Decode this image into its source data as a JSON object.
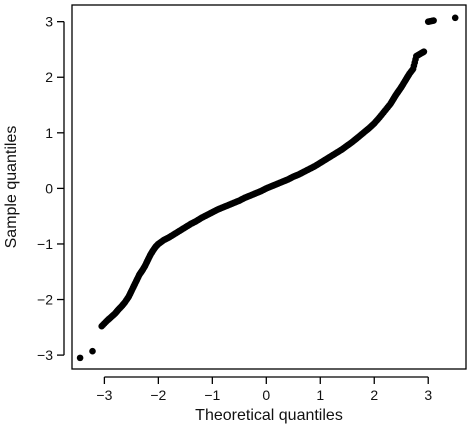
{
  "chart_data": {
    "type": "scatter",
    "xlabel": "Theoretical quantiles",
    "ylabel": "Sample quantiles",
    "xlim": [
      -3.6,
      3.7
    ],
    "ylim": [
      -3.25,
      3.3
    ],
    "x_ticks": [
      {
        "value": -3,
        "label": "−3"
      },
      {
        "value": -2,
        "label": "−2"
      },
      {
        "value": -1,
        "label": "−1"
      },
      {
        "value": 0,
        "label": "0"
      },
      {
        "value": 1,
        "label": "1"
      },
      {
        "value": 2,
        "label": "2"
      },
      {
        "value": 3,
        "label": "3"
      }
    ],
    "y_ticks": [
      {
        "value": -3,
        "label": "−3"
      },
      {
        "value": -2,
        "label": "−2"
      },
      {
        "value": -1,
        "label": "−1"
      },
      {
        "value": 0,
        "label": "0"
      },
      {
        "value": 1,
        "label": "1"
      },
      {
        "value": 2,
        "label": "2"
      },
      {
        "value": 3,
        "label": "3"
      }
    ],
    "grid": false,
    "marker_color": "#000000",
    "series": [
      {
        "points": [
          [
            -3.45,
            -3.05
          ],
          [
            -3.22,
            -2.93
          ],
          [
            -3.05,
            -2.48
          ],
          [
            -2.95,
            -2.38
          ],
          [
            -2.88,
            -2.32
          ],
          [
            -2.8,
            -2.25
          ],
          [
            -2.74,
            -2.18
          ],
          [
            -2.68,
            -2.12
          ],
          [
            -2.62,
            -2.05
          ],
          [
            -2.55,
            -1.95
          ],
          [
            -2.5,
            -1.85
          ],
          [
            -2.45,
            -1.75
          ],
          [
            -2.4,
            -1.65
          ],
          [
            -2.35,
            -1.55
          ],
          [
            -2.3,
            -1.48
          ],
          [
            -2.25,
            -1.4
          ],
          [
            -2.2,
            -1.3
          ],
          [
            -2.15,
            -1.2
          ],
          [
            -2.1,
            -1.12
          ],
          [
            -2.05,
            -1.05
          ],
          [
            -2.0,
            -1.0
          ],
          [
            -1.9,
            -0.93
          ],
          [
            -1.8,
            -0.88
          ],
          [
            -1.7,
            -0.82
          ],
          [
            -1.6,
            -0.76
          ],
          [
            -1.5,
            -0.7
          ],
          [
            -1.4,
            -0.64
          ],
          [
            -1.3,
            -0.59
          ],
          [
            -1.2,
            -0.53
          ],
          [
            -1.1,
            -0.48
          ],
          [
            -1.0,
            -0.43
          ],
          [
            -0.9,
            -0.38
          ],
          [
            -0.8,
            -0.34
          ],
          [
            -0.7,
            -0.3
          ],
          [
            -0.6,
            -0.26
          ],
          [
            -0.5,
            -0.22
          ],
          [
            -0.4,
            -0.17
          ],
          [
            -0.3,
            -0.13
          ],
          [
            -0.2,
            -0.09
          ],
          [
            -0.1,
            -0.05
          ],
          [
            0.0,
            0.0
          ],
          [
            0.1,
            0.04
          ],
          [
            0.2,
            0.08
          ],
          [
            0.3,
            0.12
          ],
          [
            0.4,
            0.16
          ],
          [
            0.5,
            0.21
          ],
          [
            0.6,
            0.25
          ],
          [
            0.7,
            0.3
          ],
          [
            0.8,
            0.35
          ],
          [
            0.9,
            0.4
          ],
          [
            1.0,
            0.46
          ],
          [
            1.1,
            0.52
          ],
          [
            1.2,
            0.58
          ],
          [
            1.3,
            0.64
          ],
          [
            1.4,
            0.7
          ],
          [
            1.5,
            0.77
          ],
          [
            1.6,
            0.84
          ],
          [
            1.7,
            0.92
          ],
          [
            1.8,
            1.0
          ],
          [
            1.9,
            1.08
          ],
          [
            2.0,
            1.17
          ],
          [
            2.1,
            1.28
          ],
          [
            2.2,
            1.4
          ],
          [
            2.3,
            1.52
          ],
          [
            2.35,
            1.6
          ],
          [
            2.4,
            1.68
          ],
          [
            2.45,
            1.75
          ],
          [
            2.5,
            1.82
          ],
          [
            2.55,
            1.9
          ],
          [
            2.6,
            1.98
          ],
          [
            2.65,
            2.06
          ],
          [
            2.72,
            2.15
          ],
          [
            2.78,
            2.38
          ],
          [
            2.85,
            2.42
          ],
          [
            2.92,
            2.46
          ],
          [
            3.0,
            3.0
          ],
          [
            3.1,
            3.02
          ],
          [
            3.5,
            3.07
          ]
        ]
      }
    ]
  }
}
